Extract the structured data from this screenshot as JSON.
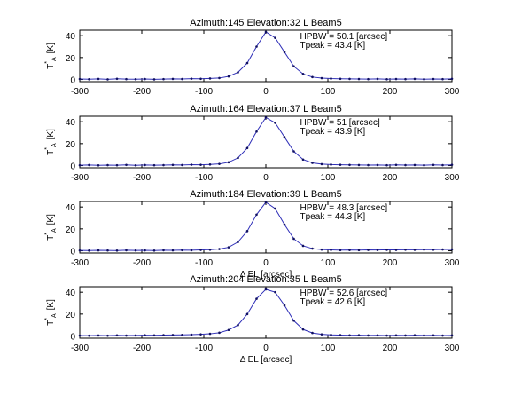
{
  "chart_data": [
    {
      "type": "line",
      "title": "Azimuth:145 Elevation:32 L Beam5",
      "annotations": [
        "HPBW = 50.1 [arcsec]",
        "Tpeak = 43.4 [K]"
      ],
      "ylabel_main": "T",
      "ylabel_sup": "*",
      "ylabel_sub": "A",
      "ylabel_unit": "[K]",
      "xlabel": "",
      "xlim": [
        -300,
        300
      ],
      "ylim": [
        -2,
        45
      ],
      "xticks": [
        -300,
        -200,
        -100,
        0,
        100,
        200,
        300
      ],
      "yticks": [
        0,
        20,
        40
      ],
      "color": "#2f2fb8",
      "x": [
        -300,
        -285,
        -270,
        -255,
        -240,
        -225,
        -210,
        -195,
        -180,
        -165,
        -150,
        -135,
        -120,
        -105,
        -90,
        -75,
        -60,
        -45,
        -30,
        -15,
        0,
        15,
        30,
        45,
        60,
        75,
        90,
        105,
        120,
        135,
        150,
        165,
        180,
        195,
        210,
        225,
        240,
        255,
        270,
        285,
        300
      ],
      "y": [
        0.4,
        0.2,
        0.5,
        0.1,
        0.6,
        0.3,
        0.2,
        0.4,
        0.1,
        0.3,
        0.5,
        0.4,
        0.7,
        0.6,
        0.9,
        1.3,
        2.8,
        6.5,
        15.0,
        30.0,
        43.4,
        38.0,
        25.0,
        12.0,
        5.0,
        2.2,
        1.2,
        0.8,
        0.6,
        0.5,
        0.4,
        0.3,
        0.5,
        0.2,
        0.4,
        0.3,
        0.5,
        0.2,
        0.4,
        0.3,
        0.6
      ]
    },
    {
      "type": "line",
      "title": "Azimuth:164 Elevation:37 L Beam5",
      "annotations": [
        "HPBW = 51 [arcsec]",
        "Tpeak = 43.9 [K]"
      ],
      "ylabel_main": "T",
      "ylabel_sup": "*",
      "ylabel_sub": "A",
      "ylabel_unit": "[K]",
      "xlabel": "",
      "xlim": [
        -300,
        300
      ],
      "ylim": [
        -2,
        45
      ],
      "xticks": [
        -300,
        -200,
        -100,
        0,
        100,
        200,
        300
      ],
      "yticks": [
        0,
        20,
        40
      ],
      "color": "#2f2fb8",
      "x": [
        -300,
        -285,
        -270,
        -255,
        -240,
        -225,
        -210,
        -195,
        -180,
        -165,
        -150,
        -135,
        -120,
        -105,
        -90,
        -75,
        -60,
        -45,
        -30,
        -15,
        0,
        15,
        30,
        45,
        60,
        75,
        90,
        105,
        120,
        135,
        150,
        165,
        180,
        195,
        210,
        225,
        240,
        255,
        270,
        285,
        300
      ],
      "y": [
        0.3,
        0.5,
        0.2,
        0.4,
        0.3,
        0.6,
        0.2,
        0.5,
        0.3,
        0.4,
        0.6,
        0.5,
        0.8,
        0.7,
        1.0,
        1.5,
        3.0,
        7.0,
        16.0,
        31.0,
        43.9,
        39.0,
        26.0,
        13.0,
        5.5,
        2.5,
        1.3,
        0.9,
        0.7,
        0.6,
        0.5,
        0.4,
        0.5,
        0.3,
        0.6,
        0.4,
        0.5,
        0.3,
        0.6,
        0.4,
        0.7
      ]
    },
    {
      "type": "line",
      "title": "Azimuth:184 Elevation:39 L Beam5",
      "annotations": [
        "HPBW = 48.3 [arcsec]",
        "Tpeak = 44.3 [K]"
      ],
      "ylabel_main": "T",
      "ylabel_sup": "*",
      "ylabel_sub": "A",
      "ylabel_unit": "[K]",
      "xlabel": "Δ EL  [arcsec]",
      "xlim": [
        -300,
        300
      ],
      "ylim": [
        -2,
        45
      ],
      "xticks": [
        -300,
        -200,
        -100,
        0,
        100,
        200,
        300
      ],
      "yticks": [
        0,
        20,
        40
      ],
      "color": "#2f2fb8",
      "x": [
        -300,
        -285,
        -270,
        -255,
        -240,
        -225,
        -210,
        -195,
        -180,
        -165,
        -150,
        -135,
        -120,
        -105,
        -90,
        -75,
        -60,
        -45,
        -30,
        -15,
        0,
        15,
        30,
        45,
        60,
        75,
        90,
        105,
        120,
        135,
        150,
        165,
        180,
        195,
        210,
        225,
        240,
        255,
        270,
        285,
        300
      ],
      "y": [
        0.3,
        0.2,
        0.4,
        0.3,
        0.2,
        0.5,
        0.3,
        0.4,
        0.2,
        0.5,
        0.4,
        0.6,
        0.5,
        0.8,
        1.0,
        1.6,
        3.2,
        8.0,
        18.0,
        33.0,
        44.3,
        38.5,
        24.0,
        11.0,
        4.5,
        2.0,
        1.1,
        0.8,
        0.6,
        0.7,
        0.6,
        0.8,
        0.7,
        0.9,
        0.8,
        1.0,
        0.9,
        1.1,
        1.0,
        1.2,
        1.3
      ]
    },
    {
      "type": "line",
      "title": "Azimuth:204 Elevation:35 L Beam5",
      "annotations": [
        "HPBW = 52.6 [arcsec]",
        "Tpeak = 42.6 [K]"
      ],
      "ylabel_main": "T",
      "ylabel_sup": "*",
      "ylabel_sub": "A",
      "ylabel_unit": "[K]",
      "xlabel": "Δ EL  [arcsec]",
      "xlim": [
        -300,
        300
      ],
      "ylim": [
        -2,
        45
      ],
      "xticks": [
        -300,
        -200,
        -100,
        0,
        100,
        200,
        300
      ],
      "yticks": [
        0,
        20,
        40
      ],
      "color": "#2f2fb8",
      "x": [
        -300,
        -285,
        -270,
        -255,
        -240,
        -225,
        -210,
        -195,
        -180,
        -165,
        -150,
        -135,
        -120,
        -105,
        -90,
        -75,
        -60,
        -45,
        -30,
        -15,
        0,
        15,
        30,
        45,
        60,
        75,
        90,
        105,
        120,
        135,
        150,
        165,
        180,
        195,
        210,
        225,
        240,
        255,
        270,
        285,
        300
      ],
      "y": [
        0.4,
        0.3,
        0.5,
        0.3,
        0.6,
        0.4,
        0.5,
        0.7,
        0.6,
        0.8,
        0.9,
        1.0,
        1.2,
        1.5,
        2.0,
        3.0,
        5.5,
        10.0,
        20.0,
        34.0,
        42.6,
        40.0,
        28.0,
        14.0,
        6.0,
        2.8,
        1.5,
        1.0,
        0.8,
        0.6,
        0.7,
        0.5,
        0.6,
        0.4,
        0.6,
        0.5,
        0.7,
        0.5,
        0.6,
        0.4,
        0.6
      ]
    }
  ]
}
